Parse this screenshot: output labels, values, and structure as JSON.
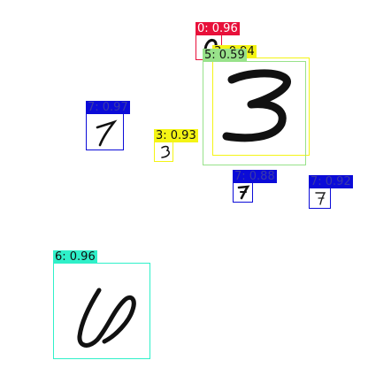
{
  "detections": [
    {
      "label": "0: 0.96",
      "color": "#e8103a",
      "text_color": "#ffffff"
    },
    {
      "label": "3: 0.94",
      "color": "#f4f415",
      "text_color": "#111111"
    },
    {
      "label": "5: 0.59",
      "color": "#98e28a",
      "text_color": "#111111"
    },
    {
      "label": "7: 0.97",
      "color": "#0b0bd8",
      "text_color": "#3a3aa8"
    },
    {
      "label": "3: 0.93",
      "color": "#f4f415",
      "text_color": "#111111"
    },
    {
      "label": "7: 0.88",
      "color": "#0b0bd8",
      "text_color": "#3a3aa8"
    },
    {
      "label": "7: 0.92",
      "color": "#0b0bd8",
      "text_color": "#3a3aa8"
    },
    {
      "label": "6: 0.96",
      "color": "#2ff0c9",
      "text_color": "#111111"
    }
  ],
  "digits": [
    "0-digit",
    "3-digit",
    "7-digit",
    "6-digit"
  ]
}
